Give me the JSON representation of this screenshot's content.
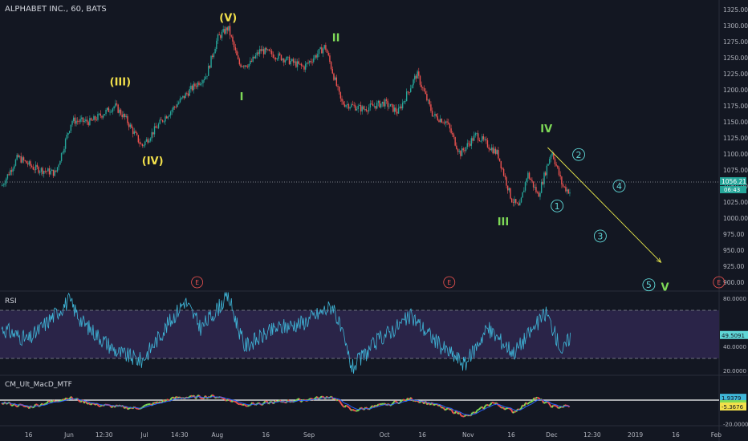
{
  "title": "ALPHABET INC., 60, BATS",
  "colors": {
    "background": "#131722",
    "up": "#26a69a",
    "down": "#ef5350",
    "wave_yellow": "#f2e04b",
    "wave_green": "#7ed957",
    "wave_cyan": "#5fd6d6",
    "rsi_line": "#3fb6d8",
    "rsi_band": "#2a2448",
    "earnings": "#ef5350",
    "target_arrow": "#e8e84c"
  },
  "chart_data": [
    {
      "type": "candlestick",
      "panel": "price",
      "ylim": [
        890,
        1330
      ],
      "y_ticks": [
        "1325.00",
        "1300.00",
        "1275.00",
        "1250.00",
        "1225.00",
        "1200.00",
        "1175.00",
        "1150.00",
        "1125.00",
        "1100.00",
        "1075.00",
        "1050.00",
        "1025.00",
        "1000.00",
        "975.00",
        "950.00",
        "925.00",
        "900.00"
      ],
      "x_ticks": [
        "16",
        "Jun",
        "12:30",
        "Jul",
        "14:30",
        "Aug",
        "16",
        "Sep",
        "Oct",
        "16",
        "Nov",
        "16",
        "Dec",
        "12:30",
        "2019",
        "16",
        "Feb"
      ],
      "price_path": [
        {
          "x": 0.0,
          "y": 1050
        },
        {
          "x": 0.6,
          "y": 1095
        },
        {
          "x": 1.2,
          "y": 1078
        },
        {
          "x": 2.0,
          "y": 1070
        },
        {
          "x": 2.6,
          "y": 1152
        },
        {
          "x": 3.3,
          "y": 1150
        },
        {
          "x": 4.2,
          "y": 1175
        },
        {
          "x": 4.6,
          "y": 1155
        },
        {
          "x": 5.2,
          "y": 1112
        },
        {
          "x": 6.0,
          "y": 1155
        },
        {
          "x": 7.0,
          "y": 1200
        },
        {
          "x": 7.6,
          "y": 1223
        },
        {
          "x": 8.0,
          "y": 1280
        },
        {
          "x": 8.4,
          "y": 1297
        },
        {
          "x": 8.8,
          "y": 1240
        },
        {
          "x": 9.2,
          "y": 1240
        },
        {
          "x": 9.6,
          "y": 1262
        },
        {
          "x": 10.4,
          "y": 1250
        },
        {
          "x": 11.2,
          "y": 1235
        },
        {
          "x": 12.0,
          "y": 1268
        },
        {
          "x": 12.6,
          "y": 1180
        },
        {
          "x": 13.4,
          "y": 1170
        },
        {
          "x": 14.2,
          "y": 1180
        },
        {
          "x": 14.7,
          "y": 1165
        },
        {
          "x": 15.4,
          "y": 1225
        },
        {
          "x": 16.0,
          "y": 1160
        },
        {
          "x": 16.5,
          "y": 1150
        },
        {
          "x": 17.0,
          "y": 1100
        },
        {
          "x": 17.6,
          "y": 1130
        },
        {
          "x": 18.4,
          "y": 1100
        },
        {
          "x": 18.9,
          "y": 1030
        },
        {
          "x": 19.2,
          "y": 1015
        },
        {
          "x": 19.5,
          "y": 1070
        },
        {
          "x": 19.9,
          "y": 1035
        },
        {
          "x": 20.4,
          "y": 1105
        },
        {
          "x": 20.8,
          "y": 1050
        },
        {
          "x": 21.1,
          "y": 1040
        }
      ],
      "last_price": "1056.21",
      "countdown": "06:43",
      "earnings_marker": "E",
      "wave_labels": [
        {
          "text": "(III)",
          "date_pos": 4.4,
          "price": 1213,
          "color": "yellow"
        },
        {
          "text": "(IV)",
          "date_pos": 5.6,
          "price": 1090,
          "color": "yellow"
        },
        {
          "text": "(V)",
          "date_pos": 8.4,
          "price": 1313,
          "color": "yellow"
        },
        {
          "text": "I",
          "date_pos": 8.9,
          "price": 1190,
          "color": "green"
        },
        {
          "text": "II",
          "date_pos": 12.4,
          "price": 1282,
          "color": "green"
        },
        {
          "text": "III",
          "date_pos": 18.6,
          "price": 995,
          "color": "green"
        },
        {
          "text": "IV",
          "date_pos": 20.2,
          "price": 1140,
          "color": "green"
        },
        {
          "text": "V",
          "date_pos": 24.6,
          "price": 893,
          "color": "green"
        },
        {
          "text": "1",
          "date_pos": 20.6,
          "price": 1019,
          "color": "cyan",
          "circled": true
        },
        {
          "text": "2",
          "date_pos": 21.4,
          "price": 1099,
          "color": "cyan",
          "circled": true
        },
        {
          "text": "3",
          "date_pos": 22.2,
          "price": 972,
          "color": "cyan",
          "circled": true
        },
        {
          "text": "4",
          "date_pos": 22.9,
          "price": 1050,
          "color": "cyan",
          "circled": true
        },
        {
          "text": "5",
          "date_pos": 24.0,
          "price": 896,
          "color": "cyan",
          "circled": true
        }
      ],
      "projection": {
        "from": {
          "x": 20.25,
          "y": 1110
        },
        "to": {
          "x": 24.45,
          "y": 931
        }
      }
    },
    {
      "type": "line",
      "panel": "rsi",
      "title": "RSI",
      "ylim": [
        10,
        90
      ],
      "y_ticks": [
        "80.0000",
        "40.0000",
        "20.0000"
      ],
      "bands": [
        70,
        30
      ],
      "current_value": "49.5091",
      "path": [
        {
          "x": 0.0,
          "y": 55
        },
        {
          "x": 1.0,
          "y": 45
        },
        {
          "x": 2.5,
          "y": 78
        },
        {
          "x": 3.0,
          "y": 60
        },
        {
          "x": 4.3,
          "y": 35
        },
        {
          "x": 5.2,
          "y": 28
        },
        {
          "x": 6.8,
          "y": 78
        },
        {
          "x": 7.4,
          "y": 55
        },
        {
          "x": 8.4,
          "y": 82
        },
        {
          "x": 9.0,
          "y": 40
        },
        {
          "x": 10.2,
          "y": 55
        },
        {
          "x": 11.2,
          "y": 60
        },
        {
          "x": 12.3,
          "y": 74
        },
        {
          "x": 13.0,
          "y": 22
        },
        {
          "x": 14.0,
          "y": 46
        },
        {
          "x": 15.2,
          "y": 65
        },
        {
          "x": 16.3,
          "y": 40
        },
        {
          "x": 17.2,
          "y": 25
        },
        {
          "x": 18.0,
          "y": 55
        },
        {
          "x": 19.0,
          "y": 35
        },
        {
          "x": 20.2,
          "y": 68
        },
        {
          "x": 20.8,
          "y": 35
        },
        {
          "x": 21.1,
          "y": 49.5
        }
      ]
    },
    {
      "type": "line",
      "panel": "macd",
      "title": "CM_Ult_MacD_MTF",
      "ylim": [
        -22,
        8
      ],
      "y_ticks": [
        "-20.0000"
      ],
      "zero_line": 0,
      "values": [
        "1.9379",
        "-3.4297",
        "-5.3676"
      ],
      "value_colors": [
        "#3fb6d8",
        "#7ed957",
        "#f2e04b"
      ],
      "macd_path": [
        {
          "x": 0.0,
          "y": -2
        },
        {
          "x": 1.0,
          "y": -6
        },
        {
          "x": 2.5,
          "y": 2
        },
        {
          "x": 3.5,
          "y": -4
        },
        {
          "x": 5.0,
          "y": -7
        },
        {
          "x": 6.5,
          "y": 2
        },
        {
          "x": 8.0,
          "y": 3
        },
        {
          "x": 9.0,
          "y": -4
        },
        {
          "x": 10.0,
          "y": -2
        },
        {
          "x": 11.2,
          "y": 0
        },
        {
          "x": 12.2,
          "y": 3
        },
        {
          "x": 13.0,
          "y": -9
        },
        {
          "x": 14.2,
          "y": -4
        },
        {
          "x": 15.2,
          "y": 1
        },
        {
          "x": 16.2,
          "y": -5
        },
        {
          "x": 17.3,
          "y": -14
        },
        {
          "x": 18.2,
          "y": -2
        },
        {
          "x": 19.0,
          "y": -10
        },
        {
          "x": 19.8,
          "y": 2
        },
        {
          "x": 20.5,
          "y": -6
        },
        {
          "x": 21.1,
          "y": -5
        }
      ]
    }
  ]
}
